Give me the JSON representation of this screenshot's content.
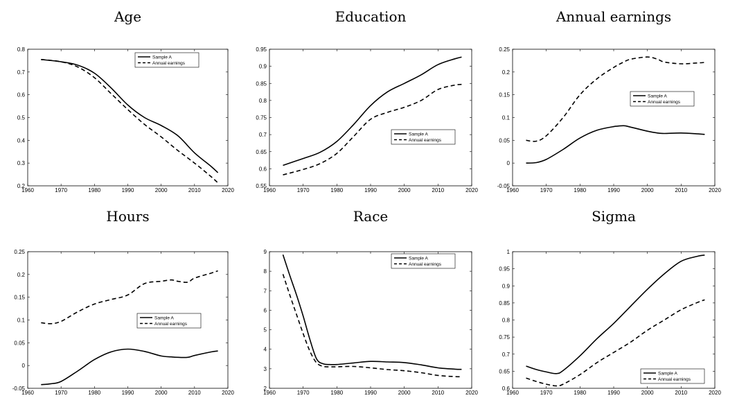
{
  "chart_data": [
    {
      "type": "line",
      "title": "Age",
      "xlim": [
        1960,
        2020
      ],
      "ylim": [
        0.2,
        0.8
      ],
      "xticks": [
        "1960",
        "1970",
        "1980",
        "1990",
        "2000",
        "2010",
        "2020"
      ],
      "yticks": [
        "0.2",
        "0.3",
        "0.4",
        "0.5",
        "0.6",
        "0.7",
        "0.8"
      ],
      "legend_position": "top-right",
      "grid": false,
      "x": [
        1964,
        1970,
        1975,
        1980,
        1985,
        1990,
        1995,
        2000,
        2005,
        2010,
        2015,
        2017
      ],
      "series": [
        {
          "name": "Sample A",
          "style": "solid",
          "values": [
            0.755,
            0.745,
            0.73,
            0.695,
            0.63,
            0.555,
            0.5,
            0.465,
            0.42,
            0.345,
            0.285,
            0.258
          ]
        },
        {
          "name": "Annual earnings",
          "style": "dashed",
          "values": [
            0.755,
            0.745,
            0.722,
            0.675,
            0.605,
            0.535,
            0.47,
            0.415,
            0.355,
            0.3,
            0.24,
            0.213
          ]
        }
      ]
    },
    {
      "type": "line",
      "title": "Education",
      "xlim": [
        1960,
        2020
      ],
      "ylim": [
        0.55,
        0.95
      ],
      "xticks": [
        "1960",
        "1970",
        "1980",
        "1990",
        "2000",
        "2010",
        "2020"
      ],
      "yticks": [
        "0.55",
        "0.6",
        "0.65",
        "0.7",
        "0.75",
        "0.8",
        "0.85",
        "0.9",
        "0.95"
      ],
      "legend_position": "center-right",
      "grid": false,
      "x": [
        1964,
        1970,
        1975,
        1980,
        1985,
        1990,
        1995,
        2000,
        2005,
        2010,
        2015,
        2017
      ],
      "series": [
        {
          "name": "Sample A",
          "style": "solid",
          "values": [
            0.61,
            0.63,
            0.648,
            0.68,
            0.73,
            0.785,
            0.825,
            0.85,
            0.875,
            0.905,
            0.922,
            0.927
          ]
        },
        {
          "name": "Annual earnings",
          "style": "dashed",
          "values": [
            0.582,
            0.598,
            0.615,
            0.645,
            0.695,
            0.745,
            0.765,
            0.78,
            0.8,
            0.832,
            0.845,
            0.847
          ]
        }
      ]
    },
    {
      "type": "line",
      "title": "Annual earnings",
      "xlim": [
        1960,
        2020
      ],
      "ylim": [
        -0.05,
        0.25
      ],
      "xticks": [
        "1960",
        "1970",
        "1980",
        "1990",
        "2000",
        "2010",
        "2020"
      ],
      "yticks": [
        "-0.05",
        "0",
        "0.05",
        "0.1",
        "0.15",
        "0.2",
        "0.25"
      ],
      "legend_position": "center-right",
      "grid": false,
      "x": [
        1964,
        1967,
        1970,
        1975,
        1980,
        1985,
        1990,
        1993,
        1995,
        2000,
        2003,
        2005,
        2010,
        2015,
        2017
      ],
      "series": [
        {
          "name": "Sample A",
          "style": "solid",
          "values": [
            0.0,
            0.001,
            0.008,
            0.03,
            0.055,
            0.072,
            0.08,
            0.082,
            0.079,
            0.07,
            0.066,
            0.065,
            0.066,
            0.064,
            0.063
          ]
        },
        {
          "name": "Annual earnings",
          "style": "dashed",
          "values": [
            0.05,
            0.048,
            0.06,
            0.1,
            0.15,
            0.185,
            0.21,
            0.222,
            0.228,
            0.233,
            0.228,
            0.222,
            0.218,
            0.22,
            0.221
          ]
        }
      ]
    },
    {
      "type": "line",
      "title": "Hours",
      "xlim": [
        1960,
        2020
      ],
      "ylim": [
        -0.05,
        0.25
      ],
      "xticks": [
        "1960",
        "1970",
        "1980",
        "1990",
        "2000",
        "2010",
        "2020"
      ],
      "yticks": [
        "-0.05",
        "0",
        "0.05",
        "0.1",
        "0.15",
        "0.2",
        "0.25"
      ],
      "legend_position": "center-right",
      "grid": false,
      "x": [
        1964,
        1967,
        1970,
        1975,
        1980,
        1985,
        1990,
        1995,
        2000,
        2003,
        2005,
        2008,
        2010,
        2015,
        2017
      ],
      "series": [
        {
          "name": "Sample A",
          "style": "solid",
          "values": [
            -0.042,
            -0.04,
            -0.035,
            -0.012,
            0.013,
            0.03,
            0.036,
            0.031,
            0.021,
            0.019,
            0.018,
            0.018,
            0.022,
            0.03,
            0.032
          ]
        },
        {
          "name": "Annual earnings",
          "style": "dashed",
          "values": [
            0.094,
            0.092,
            0.097,
            0.118,
            0.135,
            0.145,
            0.155,
            0.18,
            0.185,
            0.188,
            0.185,
            0.183,
            0.192,
            0.203,
            0.208
          ]
        }
      ]
    },
    {
      "type": "line",
      "title": "Race",
      "xlim": [
        1960,
        2020
      ],
      "ylim": [
        2,
        9
      ],
      "xticks": [
        "1960",
        "1970",
        "1980",
        "1990",
        "2000",
        "2010",
        "2020"
      ],
      "yticks": [
        "2",
        "3",
        "4",
        "5",
        "6",
        "7",
        "8",
        "9"
      ],
      "legend_position": "top-right",
      "grid": false,
      "x": [
        1964,
        1966,
        1968,
        1970,
        1972,
        1974,
        1976,
        1978,
        1980,
        1985,
        1990,
        1995,
        2000,
        2005,
        2010,
        2015,
        2017
      ],
      "series": [
        {
          "name": "Sample A",
          "style": "solid",
          "values": [
            8.85,
            7.8,
            6.8,
            5.7,
            4.5,
            3.5,
            3.25,
            3.22,
            3.22,
            3.3,
            3.38,
            3.35,
            3.32,
            3.2,
            3.05,
            2.98,
            2.97
          ]
        },
        {
          "name": "Annual earnings",
          "style": "dashed",
          "values": [
            7.85,
            6.8,
            5.8,
            4.8,
            3.9,
            3.3,
            3.12,
            3.1,
            3.1,
            3.12,
            3.05,
            2.96,
            2.9,
            2.8,
            2.66,
            2.6,
            2.59
          ]
        }
      ]
    },
    {
      "type": "line",
      "title": "Sigma",
      "xlim": [
        1960,
        2020
      ],
      "ylim": [
        0.6,
        1
      ],
      "xticks": [
        "1960",
        "1970",
        "1980",
        "1990",
        "2000",
        "2010",
        "2020"
      ],
      "yticks": [
        "0.6",
        "0.65",
        "0.7",
        "0.75",
        "0.8",
        "0.85",
        "0.9",
        "0.95",
        "1"
      ],
      "legend_position": "bottom-right",
      "grid": false,
      "x": [
        1964,
        1967,
        1970,
        1973,
        1975,
        1980,
        1985,
        1990,
        1995,
        2000,
        2005,
        2010,
        2015,
        2017
      ],
      "series": [
        {
          "name": "Sample A",
          "style": "solid",
          "values": [
            0.665,
            0.655,
            0.648,
            0.643,
            0.652,
            0.695,
            0.745,
            0.79,
            0.84,
            0.89,
            0.935,
            0.972,
            0.987,
            0.99
          ]
        },
        {
          "name": "Annual earnings",
          "style": "dashed",
          "values": [
            0.63,
            0.62,
            0.612,
            0.607,
            0.612,
            0.64,
            0.675,
            0.705,
            0.735,
            0.77,
            0.8,
            0.83,
            0.852,
            0.859
          ]
        }
      ]
    }
  ]
}
